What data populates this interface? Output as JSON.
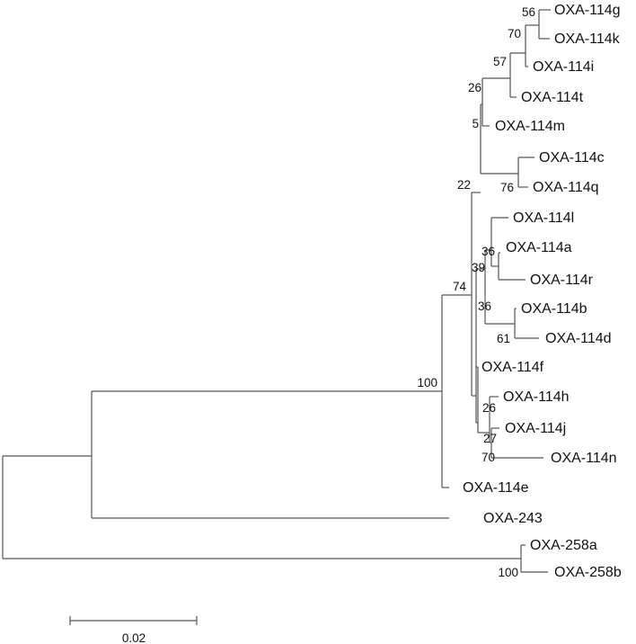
{
  "tree": {
    "leaves": [
      {
        "id": "g",
        "label": "OXA-114g"
      },
      {
        "id": "k",
        "label": "OXA-114k"
      },
      {
        "id": "i",
        "label": "OXA-114i"
      },
      {
        "id": "t",
        "label": "OXA-114t"
      },
      {
        "id": "m",
        "label": "OXA-114m"
      },
      {
        "id": "c",
        "label": "OXA-114c"
      },
      {
        "id": "q",
        "label": "OXA-114q"
      },
      {
        "id": "l",
        "label": "OXA-114l"
      },
      {
        "id": "a",
        "label": "OXA-114a"
      },
      {
        "id": "r",
        "label": "OXA-114r"
      },
      {
        "id": "b",
        "label": "OXA-114b"
      },
      {
        "id": "d",
        "label": "OXA-114d"
      },
      {
        "id": "f",
        "label": "OXA-114f"
      },
      {
        "id": "h",
        "label": "OXA-114h"
      },
      {
        "id": "j",
        "label": "OXA-114j"
      },
      {
        "id": "n",
        "label": "OXA-114n"
      },
      {
        "id": "e",
        "label": "OXA-114e"
      },
      {
        "id": "243",
        "label": "OXA-243"
      },
      {
        "id": "258a",
        "label": "OXA-258a"
      },
      {
        "id": "258b",
        "label": "OXA-258b"
      }
    ],
    "support_values": [
      {
        "node": "gk",
        "value": "56"
      },
      {
        "node": "gki",
        "value": "70"
      },
      {
        "node": "gkit",
        "value": "57"
      },
      {
        "node": "gkitm",
        "value": "5"
      },
      {
        "node": "upper",
        "value": "26"
      },
      {
        "node": "cq",
        "value": "76"
      },
      {
        "node": "ingroup-top",
        "value": "22"
      },
      {
        "node": "ar",
        "value": "36"
      },
      {
        "node": "lar",
        "value": "39"
      },
      {
        "node": "bd",
        "value": "61"
      },
      {
        "node": "mid",
        "value": "36"
      },
      {
        "node": "ingroup",
        "value": "74"
      },
      {
        "node": "fhjn",
        "value": "26"
      },
      {
        "node": "hjn",
        "value": "27"
      },
      {
        "node": "jn",
        "value": "70"
      },
      {
        "node": "oxa114",
        "value": "100"
      },
      {
        "node": "oxa258",
        "value": "100"
      }
    ],
    "scale_bar": {
      "label": "0.02",
      "length": 0.02
    }
  }
}
